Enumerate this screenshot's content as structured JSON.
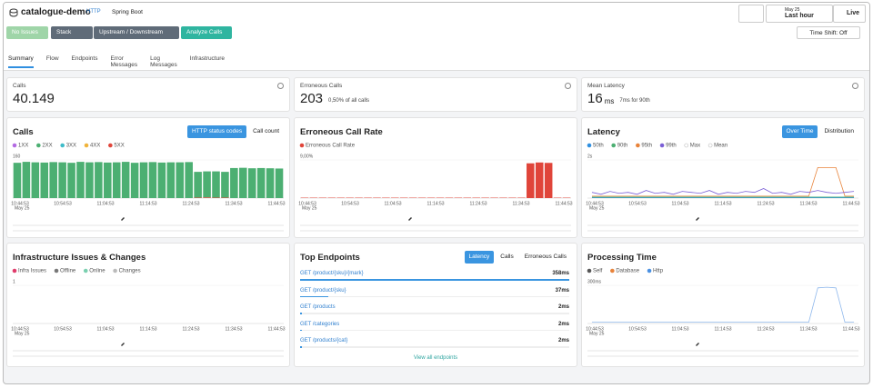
{
  "header": {
    "service": "catalogue-demo",
    "protocol": "HTTP",
    "framework": "Spring Boot",
    "date": "May 25",
    "range": "Last hour",
    "live": "Live"
  },
  "toolbar": {
    "buttons": [
      "No Issues",
      "Stack",
      "Upstream / Downstream",
      "Analyze Calls"
    ],
    "time_shift": "Time Shift: Off"
  },
  "tabs": [
    "Summary",
    "Flow",
    "Endpoints",
    "Error Messages",
    "Log Messages",
    "Infrastructure"
  ],
  "kpis": [
    {
      "label": "Calls",
      "value": "40.149"
    },
    {
      "label": "Erroneous Calls",
      "value": "203",
      "note": "0,50% of all calls"
    },
    {
      "label": "Mean Latency",
      "value": "16",
      "unit": "ms",
      "note": "7ms for 90th"
    }
  ],
  "time_axis": {
    "ticks": [
      "10:44:53",
      "10:54:53",
      "11:04:53",
      "11:14:53",
      "11:24:53",
      "11:34:53",
      "11:44:53"
    ],
    "date": "May 25"
  },
  "panels": [
    {
      "title": "Calls",
      "toggles": [
        "HTTP status codes",
        "Call count"
      ],
      "active": 0,
      "chart": {
        "type": "bar",
        "ylim": [
          0,
          160
        ],
        "yticks": [
          160
        ],
        "legend": [
          {
            "name": "1XX",
            "color": "#b36ae2"
          },
          {
            "name": "2XX",
            "color": "#4caf72"
          },
          {
            "name": "3XX",
            "color": "#3fbcc9"
          },
          {
            "name": "4XX",
            "color": "#f0b33a"
          },
          {
            "name": "5XX",
            "color": "#e0453a"
          }
        ],
        "series": [
          {
            "name": "5XX",
            "color": "#e0453a",
            "values": [
              0,
              0,
              0,
              0,
              0,
              0,
              0,
              0,
              0,
              0,
              0,
              0,
              0,
              0,
              0,
              0,
              0,
              0,
              0,
              0,
              2,
              3,
              2,
              2,
              0,
              0,
              0,
              0,
              0,
              0
            ]
          },
          {
            "name": "2XX",
            "color": "#4caf72",
            "values": [
              148,
              152,
              150,
              149,
              151,
              150,
              148,
              152,
              150,
              151,
              149,
              150,
              152,
              148,
              150,
              151,
              149,
              150,
              150,
              151,
              108,
              109,
              110,
              108,
              126,
              127,
              125,
              126,
              125,
              124
            ]
          }
        ]
      }
    },
    {
      "title": "Erroneous Call Rate",
      "toggles": [],
      "chart": {
        "type": "bar",
        "ylim": [
          0,
          9
        ],
        "yticks": [
          {
            "value": 9,
            "label": "9,00%"
          }
        ],
        "legend": [
          {
            "name": "Erroneous Call Rate",
            "color": "#e0453a"
          }
        ],
        "series": [
          {
            "name": "Erroneous Call Rate",
            "color": "#e0453a",
            "values": [
              0.1,
              0.1,
              0.1,
              0.1,
              0.1,
              0.1,
              0.1,
              0.1,
              0.1,
              0.1,
              0.1,
              0.1,
              0.1,
              0.1,
              0.1,
              0.1,
              0.1,
              0.1,
              0.1,
              0.1,
              0.1,
              0.1,
              0.1,
              0.1,
              0.1,
              8.2,
              8.4,
              8.3,
              0.1,
              0.1
            ]
          }
        ]
      }
    },
    {
      "title": "Latency",
      "toggles": [
        "Over Time",
        "Distribution"
      ],
      "active": 0,
      "chart": {
        "type": "line",
        "ylim": [
          0,
          2
        ],
        "yticks": [
          {
            "value": 2,
            "label": "2s"
          }
        ],
        "legend": [
          {
            "name": "50th",
            "color": "#2f8fe0"
          },
          {
            "name": "90th",
            "color": "#4caf72"
          },
          {
            "name": "95th",
            "color": "#e8833a"
          },
          {
            "name": "99th",
            "color": "#7b5fd6"
          },
          {
            "name": "Max",
            "color": "#bbbbbb",
            "checked": false
          },
          {
            "name": "Mean",
            "color": "#bbbbbb",
            "checked": false
          }
        ],
        "series": [
          {
            "name": "50th",
            "color": "#2f8fe0",
            "values": [
              0.02,
              0.02,
              0.02,
              0.02,
              0.02,
              0.02,
              0.02,
              0.02,
              0.02,
              0.02,
              0.02,
              0.02,
              0.02,
              0.02,
              0.02,
              0.02,
              0.02,
              0.02,
              0.02,
              0.02,
              0.02,
              0.02,
              0.02,
              0.02,
              0.02,
              0.02,
              0.02,
              0.02,
              0.02,
              0.02
            ]
          },
          {
            "name": "90th",
            "color": "#4caf72",
            "values": [
              0.05,
              0.05,
              0.05,
              0.05,
              0.05,
              0.05,
              0.05,
              0.05,
              0.05,
              0.05,
              0.05,
              0.05,
              0.05,
              0.05,
              0.05,
              0.05,
              0.05,
              0.05,
              0.05,
              0.05,
              0.05,
              0.05,
              0.05,
              0.05,
              0.05,
              0.05,
              0.05,
              0.05,
              0.05,
              0.05
            ]
          },
          {
            "name": "95th",
            "color": "#e8833a",
            "values": [
              0.1,
              0.1,
              0.1,
              0.1,
              0.1,
              0.1,
              0.1,
              0.1,
              0.1,
              0.1,
              0.1,
              0.1,
              0.1,
              0.1,
              0.1,
              0.1,
              0.1,
              0.1,
              0.1,
              0.1,
              0.1,
              0.1,
              0.1,
              0.1,
              0.1,
              1.6,
              1.6,
              1.6,
              0.1,
              0.1
            ]
          },
          {
            "name": "99th",
            "color": "#7b5fd6",
            "values": [
              0.3,
              0.2,
              0.35,
              0.25,
              0.3,
              0.2,
              0.4,
              0.25,
              0.3,
              0.2,
              0.35,
              0.3,
              0.25,
              0.4,
              0.2,
              0.3,
              0.25,
              0.35,
              0.3,
              0.5,
              0.25,
              0.3,
              0.2,
              0.35,
              0.3,
              0.4,
              0.3,
              0.25,
              0.3,
              0.35
            ]
          }
        ]
      }
    },
    {
      "title": "Infrastructure Issues & Changes",
      "toggles": [],
      "chart": {
        "type": "bar",
        "ylim": [
          0,
          1
        ],
        "yticks": [
          1
        ],
        "legend": [
          {
            "name": "Infra Issues",
            "color": "#e03a6a"
          },
          {
            "name": "Offline",
            "color": "#777777"
          },
          {
            "name": "Online",
            "color": "#7ad0b0"
          },
          {
            "name": "Changes",
            "color": "#bbbbbb"
          }
        ],
        "series": []
      }
    },
    {
      "title": "Processing Time",
      "toggles": [],
      "chart": {
        "type": "line",
        "ylim": [
          0,
          300
        ],
        "yticks": [
          {
            "value": 300,
            "label": "300ms"
          }
        ],
        "legend": [
          {
            "name": "Self",
            "color": "#555555"
          },
          {
            "name": "Database",
            "color": "#e8833a"
          },
          {
            "name": "Http",
            "color": "#4a90e2"
          }
        ],
        "series": [
          {
            "name": "Http",
            "color": "#8fb8ec",
            "values": [
              10,
              10,
              10,
              10,
              10,
              10,
              10,
              10,
              10,
              10,
              10,
              10,
              10,
              10,
              10,
              10,
              10,
              10,
              10,
              10,
              10,
              10,
              10,
              10,
              10,
              280,
              285,
              280,
              10,
              10
            ]
          }
        ]
      }
    }
  ],
  "top_endpoints": {
    "title": "Top Endpoints",
    "toggles": [
      "Latency",
      "Calls",
      "Erroneous Calls"
    ],
    "active": 0,
    "rows": [
      {
        "name": "GET /product/{sku}/{mark}",
        "value": 358,
        "value_label": "358ms"
      },
      {
        "name": "GET /product/{sku}",
        "value": 37,
        "value_label": "37ms"
      },
      {
        "name": "GET /products",
        "value": 2,
        "value_label": "2ms"
      },
      {
        "name": "GET /categories",
        "value": 2,
        "value_label": "2ms"
      },
      {
        "name": "GET /products/{cat}",
        "value": 2,
        "value_label": "2ms"
      }
    ],
    "footer": "View all endpoints"
  }
}
